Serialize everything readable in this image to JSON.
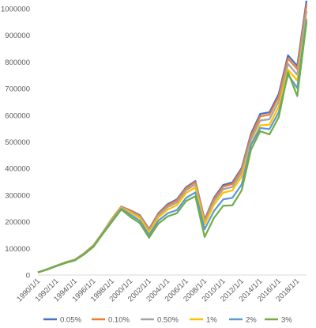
{
  "chart_data": {
    "type": "line",
    "ylim": [
      0,
      1000000
    ],
    "yticks": [
      0,
      100000,
      200000,
      300000,
      400000,
      500000,
      600000,
      700000,
      800000,
      900000,
      1000000
    ],
    "ytick_labels": [
      "0",
      "100000",
      "200000",
      "300000",
      "400000",
      "500000",
      "600000",
      "700000",
      "800000",
      "900000",
      "1000000"
    ],
    "x": [
      1990,
      1991,
      1992,
      1993,
      1994,
      1995,
      1996,
      1997,
      1998,
      1999,
      2000,
      2001,
      2002,
      2003,
      2004,
      2005,
      2006,
      2007,
      2008,
      2009,
      2010,
      2011,
      2012,
      2013,
      2014,
      2015,
      2016,
      2017,
      2018,
      2019
    ],
    "xtick_labels": [
      "1990/1/1",
      "1992/1/1",
      "1994/1/1",
      "1996/1/1",
      "1998/1/1",
      "2000/1/1",
      "2002/1/1",
      "2004/1/1",
      "2006/1/1",
      "2008/1/1",
      "2010/1/1",
      "2012/1/1",
      "2014/1/1",
      "2016/1/1",
      "2018/1/1"
    ],
    "legend_position": "bottom",
    "grid": false,
    "series": [
      {
        "name": "0.05%",
        "color": "#4472C4",
        "values": [
          10000,
          22000,
          35000,
          48000,
          58000,
          82000,
          112000,
          160000,
          212000,
          257000,
          243000,
          225000,
          173000,
          232000,
          266000,
          284000,
          330000,
          353000,
          208000,
          290000,
          338000,
          348000,
          402000,
          530000,
          605000,
          611000,
          680000,
          825000,
          785000,
          1030000
        ]
      },
      {
        "name": "0.10%",
        "color": "#ED7D31",
        "values": [
          10000,
          22000,
          35000,
          48000,
          58000,
          82000,
          112000,
          160000,
          212000,
          256000,
          242000,
          223000,
          171000,
          229000,
          262000,
          280000,
          326000,
          349000,
          205000,
          285000,
          332000,
          342000,
          396000,
          522000,
          596000,
          602000,
          670000,
          813000,
          773000,
          1015000
        ]
      },
      {
        "name": "0.50%",
        "color": "#A5A5A5",
        "values": [
          10000,
          22000,
          35000,
          48000,
          58000,
          81000,
          111000,
          159000,
          210000,
          254000,
          238000,
          219000,
          166000,
          223000,
          255000,
          272000,
          318000,
          340000,
          198000,
          276000,
          322000,
          331000,
          384000,
          508000,
          580000,
          585000,
          652000,
          793000,
          752000,
          992000
        ]
      },
      {
        "name": "1%",
        "color": "#FFC000",
        "values": [
          10000,
          21500,
          34500,
          47500,
          57000,
          80000,
          110000,
          158000,
          208000,
          252000,
          234000,
          214000,
          160000,
          216000,
          246000,
          262000,
          308000,
          329000,
          190000,
          264000,
          309000,
          318000,
          370000,
          490000,
          562000,
          565000,
          632000,
          771000,
          730000,
          965000
        ]
      },
      {
        "name": "2%",
        "color": "#5B9BD5",
        "values": [
          10000,
          21000,
          34000,
          46500,
          56000,
          79000,
          108000,
          156000,
          204000,
          249000,
          226000,
          204000,
          150000,
          204000,
          232000,
          244000,
          290000,
          310000,
          172000,
          240000,
          284000,
          290000,
          340000,
          488000,
          552000,
          548000,
          611000,
          752000,
          702000,
          960000
        ]
      },
      {
        "name": "3%",
        "color": "#70AD47",
        "values": [
          10000,
          20500,
          33500,
          45500,
          55000,
          78000,
          106000,
          154000,
          200000,
          246000,
          218000,
          195000,
          140000,
          193000,
          220000,
          232000,
          278000,
          296000,
          143000,
          214000,
          260000,
          262000,
          318000,
          470000,
          540000,
          528000,
          592000,
          762000,
          672000,
          950000
        ]
      }
    ]
  }
}
